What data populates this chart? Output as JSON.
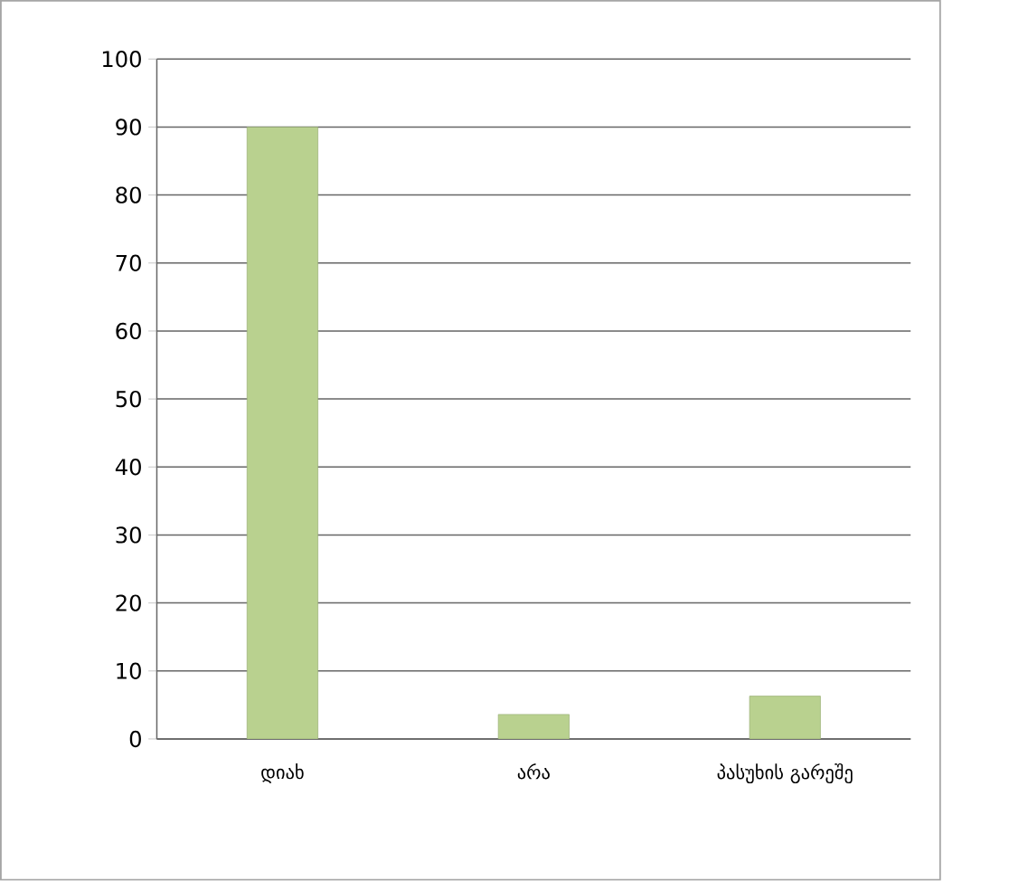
{
  "chart_data": {
    "type": "bar",
    "categories": [
      "დიახ",
      "არა",
      "პასუხის გარეშე"
    ],
    "values": [
      90,
      3.6,
      6.3
    ],
    "color": "#b9d18f",
    "ylim": [
      0,
      100
    ],
    "yticks": [
      0,
      10,
      20,
      30,
      40,
      50,
      60,
      70,
      80,
      90,
      100
    ],
    "grid": "y"
  }
}
